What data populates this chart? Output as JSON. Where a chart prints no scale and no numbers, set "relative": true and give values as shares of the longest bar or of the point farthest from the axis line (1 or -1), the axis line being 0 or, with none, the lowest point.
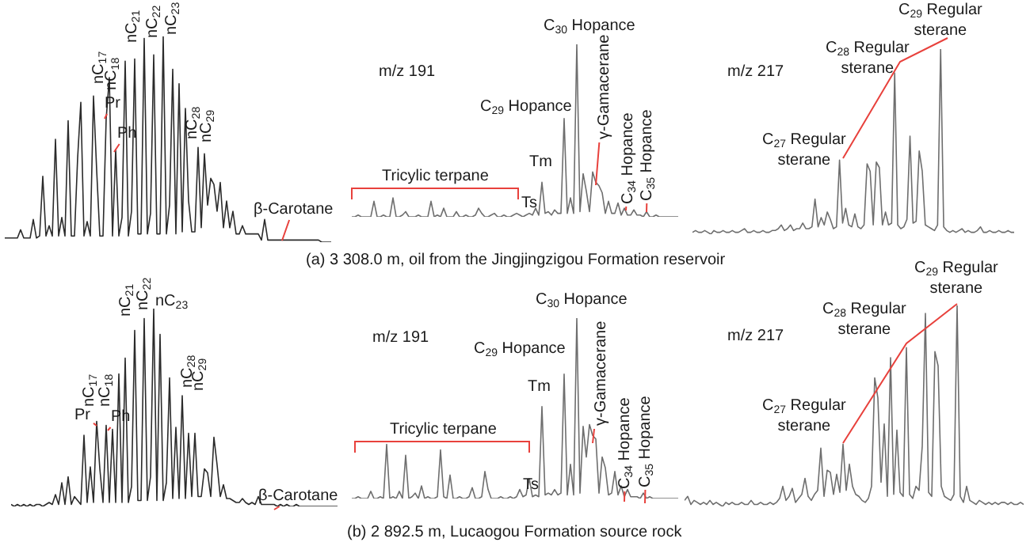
{
  "chart_data": [
    {
      "type": "line",
      "relative": true,
      "categories": [
        null,
        null,
        null,
        null,
        null,
        null,
        null,
        null,
        null,
        null,
        null,
        null,
        null,
        null,
        null,
        null,
        null,
        null,
        null,
        null,
        null,
        null,
        null,
        null,
        null,
        null,
        null,
        null,
        null,
        null,
        null,
        null,
        null,
        null,
        null,
        null,
        null,
        null,
        null,
        null,
        null,
        null,
        null,
        null,
        null,
        null,
        null,
        null,
        null,
        null,
        null,
        null,
        null,
        null,
        null,
        null,
        null,
        null,
        null,
        null,
        null,
        null,
        null,
        null,
        null,
        null,
        null,
        null,
        null,
        null,
        null,
        null,
        null,
        null,
        null,
        null,
        null,
        null,
        null,
        null,
        null,
        null,
        null,
        null,
        null,
        null,
        null,
        null,
        null,
        null,
        null,
        null,
        null,
        null,
        null,
        null,
        null,
        null,
        null,
        null,
        null,
        null,
        null,
        null
      ],
      "series": [
        {
          "color": "#2b2b2b",
          "values": [
            0.02,
            0.02,
            0.02,
            0.02,
            0.02,
            0.06,
            0.02,
            0.02,
            0.02,
            0.11,
            0.02,
            0.03,
            0.32,
            0.03,
            0.08,
            0.03,
            0.5,
            0.03,
            0.12,
            0.03,
            0.59,
            0.03,
            0.03,
            0.41,
            0.68,
            0.03,
            0.1,
            0.03,
            0.71,
            0.35,
            0.03,
            0.03,
            0.6,
            0.8,
            0.03,
            0.45,
            0.03,
            0.12,
            0.88,
            0.03,
            0.15,
            0.89,
            0.04,
            0.04,
            0.99,
            0.04,
            0.14,
            0.91,
            0.04,
            0.04,
            1,
            0.04,
            0.18,
            0.84,
            0.04,
            0.77,
            0.05,
            0.65,
            0.2,
            0.05,
            0.05,
            0.46,
            0.07,
            0.43,
            0.18,
            0.31,
            0.28,
            0.15,
            0.29,
            0.07,
            0.2,
            0.07,
            0.15,
            0.04,
            0.04,
            0.08,
            0.04,
            0.04,
            0.04,
            0.04,
            0.04,
            0.01,
            0.11,
            0.01,
            0.01,
            0.01,
            0.01,
            0.01,
            0.01,
            0.01,
            0.01,
            0.01,
            0.01,
            0.01,
            0.01,
            0.01,
            0.01,
            0.01,
            0.01,
            0.01,
            0,
            0,
            0,
            0
          ]
        }
      ],
      "annotations": [
        "nC$_{17}$",
        "nC$_{18}$",
        "Pr",
        "Ph",
        "nC$_{21}$",
        "nC$_{22}$",
        "nC$_{23}$",
        "nC$_{28}$",
        "nC$_{29}$",
        "β-Carotane"
      ]
    },
    {
      "type": "line",
      "relative": true,
      "categories": [
        null,
        null,
        null,
        null,
        null,
        null,
        null,
        null,
        null,
        null,
        null,
        null,
        null,
        null,
        null,
        null,
        null,
        null,
        null,
        null,
        null,
        null,
        null,
        null,
        null,
        null,
        null,
        null,
        null,
        null,
        null,
        null,
        null,
        null,
        null,
        null,
        null,
        null,
        null,
        null,
        null,
        null,
        null,
        null,
        null,
        null,
        null,
        null,
        null,
        null,
        null,
        null,
        null,
        null,
        null,
        null,
        null,
        null,
        null,
        null,
        null,
        null,
        null,
        null,
        null,
        null,
        null,
        null,
        null,
        null,
        null,
        null,
        null,
        null,
        null,
        null,
        null,
        null,
        null,
        null,
        null,
        null,
        null,
        null,
        null,
        null,
        null,
        null,
        null,
        null,
        null,
        null,
        null,
        null,
        null,
        null,
        null,
        null,
        null,
        null,
        null,
        null,
        null,
        null
      ],
      "series": [
        {
          "color": "#6e6e6e",
          "values": [
            0,
            0,
            0.01,
            0,
            0,
            0,
            0,
            0.09,
            0,
            0,
            0.01,
            0,
            0,
            0.11,
            0,
            0,
            0.01,
            0.03,
            0,
            0,
            0,
            0.01,
            0,
            0,
            0,
            0.09,
            0,
            0.01,
            0,
            0.05,
            0,
            0,
            0,
            0.03,
            0,
            0,
            0.01,
            0,
            0,
            0.01,
            0.05,
            0.02,
            0,
            0,
            0.01,
            0.02,
            0,
            0,
            0.01,
            0,
            0,
            0.01,
            0.02,
            0.01,
            0,
            0.01,
            0.02,
            0.01,
            0.05,
            0.01,
            0.2,
            0.02,
            0.03,
            0.01,
            0.04,
            0.02,
            0.02,
            0.57,
            0.02,
            0.11,
            0.02,
            1,
            0.03,
            0.25,
            0.15,
            0.03,
            0.26,
            0.2,
            0.18,
            0.14,
            0.02,
            0.09,
            0.02,
            0.02,
            0.08,
            0.01,
            0.05,
            0.01,
            0.01,
            0.04,
            0.01,
            0.01,
            0,
            0.03,
            0,
            0,
            0.01,
            0,
            0,
            0,
            0,
            0,
            0,
            0
          ]
        }
      ],
      "annotations": [
        "m/z 191",
        "C$_{30}$ Hopance",
        "C$_{29}$ Hopance",
        "Tm",
        "Ts",
        "Tricylic terpane",
        "γ-Gamacerane",
        "C$_{34}$ Hopance",
        "C$_{35}$ Hopance",
        "(a) 3 308.0 m, oil from the Jingjingzigou Formation reservoir"
      ]
    },
    {
      "type": "line",
      "relative": true,
      "categories": [
        null,
        null,
        null,
        null,
        null,
        null,
        null,
        null,
        null,
        null,
        null,
        null,
        null,
        null,
        null,
        null,
        null,
        null,
        null,
        null,
        null,
        null,
        null,
        null,
        null,
        null,
        null,
        null,
        null,
        null,
        null,
        null,
        null,
        null,
        null,
        null,
        null,
        null,
        null,
        null,
        null,
        null,
        null,
        null,
        null,
        null,
        null,
        null,
        null,
        null,
        null,
        null,
        null,
        null,
        null,
        null,
        null,
        null,
        null,
        null,
        null,
        null,
        null,
        null,
        null,
        null,
        null,
        null,
        null,
        null,
        null,
        null,
        null,
        null,
        null,
        null,
        null,
        null,
        null,
        null,
        null,
        null,
        null,
        null,
        null,
        null,
        null,
        null,
        null,
        null,
        null,
        null,
        null,
        null,
        null,
        null,
        null,
        null,
        null,
        null,
        null,
        null,
        null,
        null,
        null,
        null
      ],
      "series": [
        {
          "color": "#6e6e6e",
          "values": [
            0.01,
            0.02,
            0.01,
            0.01,
            0.02,
            0.01,
            0,
            0.02,
            0.01,
            0.01,
            0.02,
            0.01,
            0.01,
            0.02,
            0.01,
            0.01,
            0.02,
            0.03,
            0.01,
            0.01,
            0.02,
            0.01,
            0.01,
            0.02,
            0.01,
            0.01,
            0.02,
            0.02,
            0.03,
            0.05,
            0.02,
            0.03,
            0.05,
            0.02,
            0.03,
            0.03,
            0.06,
            0.03,
            0.03,
            0.04,
            0.19,
            0.04,
            0.09,
            0.05,
            0.12,
            0.08,
            0.03,
            0.04,
            0.4,
            0.06,
            0.14,
            0.05,
            0.04,
            0.11,
            0.04,
            0.03,
            0.05,
            0.38,
            0.34,
            0.05,
            0.39,
            0.36,
            0.05,
            0.12,
            0.05,
            0.06,
            0.87,
            0.05,
            0.03,
            0.04,
            0.08,
            0.53,
            0.06,
            0.07,
            0.45,
            0.34,
            0.05,
            0.04,
            0.03,
            0.02,
            0.05,
            1,
            0.04,
            0.02,
            0.01,
            0.02,
            0.01,
            0.02,
            0.03,
            0.01,
            0.02,
            0.01,
            0.01,
            0.02,
            0.04,
            0.01,
            0.01,
            0.02,
            0.01,
            0.01,
            0.02,
            0.01,
            0.01,
            0.02,
            0.01,
            0.01
          ]
        }
      ],
      "annotations": [
        "m/z 217",
        "C$_{27}$ Regular sterane",
        "C$_{28}$ Regular sterane",
        "C$_{29}$ Regular sterane"
      ]
    },
    {
      "type": "line",
      "relative": true,
      "categories": [
        null,
        null,
        null,
        null,
        null,
        null,
        null,
        null,
        null,
        null,
        null,
        null,
        null,
        null,
        null,
        null,
        null,
        null,
        null,
        null,
        null,
        null,
        null,
        null,
        null,
        null,
        null,
        null,
        null,
        null,
        null,
        null,
        null,
        null,
        null,
        null,
        null,
        null,
        null,
        null,
        null,
        null,
        null,
        null,
        null,
        null,
        null,
        null,
        null,
        null,
        null,
        null,
        null,
        null,
        null,
        null,
        null,
        null,
        null,
        null,
        null,
        null,
        null,
        null,
        null,
        null,
        null,
        null,
        null,
        null,
        null,
        null,
        null,
        null,
        null,
        null,
        null,
        null,
        null,
        null,
        null,
        null,
        null,
        null,
        null,
        null,
        null,
        null,
        null,
        null,
        null,
        null,
        null,
        null,
        null,
        null,
        null,
        null,
        null,
        null,
        null,
        null,
        null,
        null
      ],
      "series": [
        {
          "color": "#2b2b2b",
          "values": [
            0.01,
            0,
            0.01,
            0,
            0.01,
            0,
            0.01,
            0,
            0.01,
            0.01,
            0,
            0.01,
            0.02,
            0.01,
            0.06,
            0.01,
            0.12,
            0.01,
            0.15,
            0.01,
            0.05,
            0.03,
            0.01,
            0.36,
            0.02,
            0.2,
            0.02,
            0.43,
            0.19,
            0.02,
            0.41,
            0.02,
            0.39,
            0.02,
            0.67,
            0.02,
            0.75,
            0.02,
            0.1,
            0.89,
            0.03,
            0.03,
            0.95,
            0.03,
            0.15,
            1,
            0.03,
            0.87,
            0.03,
            0.12,
            0.65,
            0.04,
            0.4,
            0.04,
            0.56,
            0.04,
            0.37,
            0.05,
            0.37,
            0.05,
            0.05,
            0.19,
            0.17,
            0.05,
            0.35,
            0.21,
            0.05,
            0.11,
            0.04,
            0.04,
            0.03,
            0.02,
            0.02,
            0.04,
            0.02,
            0.01,
            0.02,
            0.01,
            0.05,
            0.01,
            0.01,
            0.01,
            0.01,
            0.01,
            0,
            0.01,
            0,
            0.01,
            0,
            0,
            0.01,
            0,
            0,
            0,
            0,
            0,
            0,
            0,
            0,
            0,
            0,
            0,
            0,
            0
          ]
        }
      ],
      "annotations": [
        "nC$_{17}$",
        "nC$_{18}$",
        "Pr",
        "Ph",
        "nC$_{21}$",
        "nC$_{22}$",
        "nC$_{23}$",
        "nC$_{28}$",
        "nC$_{29}$",
        "β-Carotane"
      ]
    },
    {
      "type": "line",
      "relative": true,
      "categories": [
        null,
        null,
        null,
        null,
        null,
        null,
        null,
        null,
        null,
        null,
        null,
        null,
        null,
        null,
        null,
        null,
        null,
        null,
        null,
        null,
        null,
        null,
        null,
        null,
        null,
        null,
        null,
        null,
        null,
        null,
        null,
        null,
        null,
        null,
        null,
        null,
        null,
        null,
        null,
        null,
        null,
        null,
        null,
        null,
        null,
        null,
        null,
        null,
        null,
        null,
        null,
        null,
        null,
        null,
        null,
        null,
        null,
        null,
        null,
        null,
        null,
        null,
        null,
        null,
        null,
        null,
        null,
        null,
        null,
        null,
        null,
        null,
        null,
        null,
        null,
        null,
        null,
        null,
        null,
        null,
        null,
        null,
        null,
        null,
        null,
        null,
        null,
        null,
        null,
        null,
        null,
        null,
        null,
        null,
        null,
        null,
        null,
        null,
        null,
        null,
        null,
        null,
        null,
        null
      ],
      "series": [
        {
          "color": "#6e6e6e",
          "values": [
            0,
            0,
            0.01,
            0,
            0,
            0,
            0.04,
            0,
            0,
            0.01,
            0,
            0.3,
            0,
            0.01,
            0,
            0.04,
            0,
            0.24,
            0,
            0.01,
            0.03,
            0,
            0.07,
            0,
            0.01,
            0,
            0,
            0.01,
            0.27,
            0.01,
            0,
            0.13,
            0,
            0,
            0.01,
            0,
            0,
            0.01,
            0.06,
            0,
            0,
            0.01,
            0.15,
            0.05,
            0,
            0,
            0,
            0.01,
            0,
            0,
            0.01,
            0,
            0.01,
            0.05,
            0.01,
            0.02,
            0.11,
            0.01,
            0.02,
            0.01,
            0.51,
            0.02,
            0.03,
            0.02,
            0.05,
            0.02,
            0.03,
            0.69,
            0.02,
            0.19,
            0.02,
            1,
            0.03,
            0.4,
            0.23,
            0.41,
            0.35,
            0.33,
            0.03,
            0.23,
            0.17,
            0.02,
            0.03,
            0.15,
            0.02,
            0.07,
            0.01,
            0.05,
            0.01,
            0.01,
            0.01,
            0,
            0.03,
            0,
            0.01,
            0,
            0,
            0,
            0,
            0,
            0,
            0,
            0,
            0
          ]
        }
      ],
      "annotations": [
        "m/z 191",
        "C$_{30}$ Hopance",
        "C$_{29}$ Hopance",
        "Tm",
        "Ts",
        "Tricylic terpane",
        "γ-Gamacerane",
        "C$_{34}$ Hopance",
        "C$_{35}$ Hopance",
        "(b) 2 892.5 m, Lucaogou Formation source rock"
      ]
    },
    {
      "type": "line",
      "relative": true,
      "categories": [
        null,
        null,
        null,
        null,
        null,
        null,
        null,
        null,
        null,
        null,
        null,
        null,
        null,
        null,
        null,
        null,
        null,
        null,
        null,
        null,
        null,
        null,
        null,
        null,
        null,
        null,
        null,
        null,
        null,
        null,
        null,
        null,
        null,
        null,
        null,
        null,
        null,
        null,
        null,
        null,
        null,
        null,
        null,
        null,
        null,
        null,
        null,
        null,
        null,
        null,
        null,
        null,
        null,
        null,
        null,
        null,
        null,
        null,
        null,
        null,
        null,
        null,
        null,
        null,
        null,
        null,
        null,
        null,
        null,
        null,
        null,
        null,
        null,
        null,
        null,
        null,
        null,
        null,
        null,
        null,
        null,
        null,
        null,
        null,
        null,
        null,
        null,
        null,
        null,
        null,
        null,
        null,
        null,
        null,
        null,
        null,
        null,
        null,
        null,
        null,
        null,
        null,
        null,
        null,
        null,
        null,
        null,
        null
      ],
      "series": [
        {
          "color": "#6e6e6e",
          "values": [
            0.03,
            0.05,
            0.01,
            0.03,
            0.02,
            0.01,
            0.02,
            0.01,
            0.03,
            0.01,
            0.02,
            0.01,
            0,
            0.02,
            0.01,
            0.02,
            0.01,
            0.01,
            0.02,
            0.01,
            0.01,
            0.03,
            0.01,
            0.01,
            0.02,
            0.01,
            0.01,
            0.02,
            0.01,
            0.02,
            0.04,
            0.1,
            0.03,
            0.05,
            0.09,
            0.02,
            0.04,
            0.06,
            0.14,
            0.05,
            0.03,
            0.06,
            0.08,
            0.29,
            0.05,
            0.18,
            0.17,
            0.06,
            0.16,
            0.07,
            0.31,
            0.08,
            0.21,
            0.1,
            0.06,
            0.05,
            0.03,
            0.02,
            0.04,
            0.1,
            0.64,
            0.54,
            0.12,
            0.41,
            0.05,
            0.74,
            0.06,
            0.38,
            0.07,
            0.05,
            0.79,
            0.06,
            0.04,
            0.1,
            0.08,
            0.3,
            0.96,
            0.07,
            0.05,
            0.77,
            0.7,
            0.1,
            0.05,
            0.04,
            0.03,
            0.06,
            1,
            0.05,
            0.02,
            0.1,
            0.03,
            0.02,
            0.01,
            0.03,
            0.02,
            0.01,
            0.02,
            0.01,
            0.02,
            0.01,
            0.02,
            0.02,
            0.01,
            0.02,
            0.01,
            0.01,
            0.02,
            0.01
          ]
        }
      ],
      "annotations": [
        "m/z 217",
        "C$_{27}$ Regular sterane",
        "C$_{28}$ Regular sterane",
        "C$_{29}$ Regular sterane"
      ]
    }
  ]
}
